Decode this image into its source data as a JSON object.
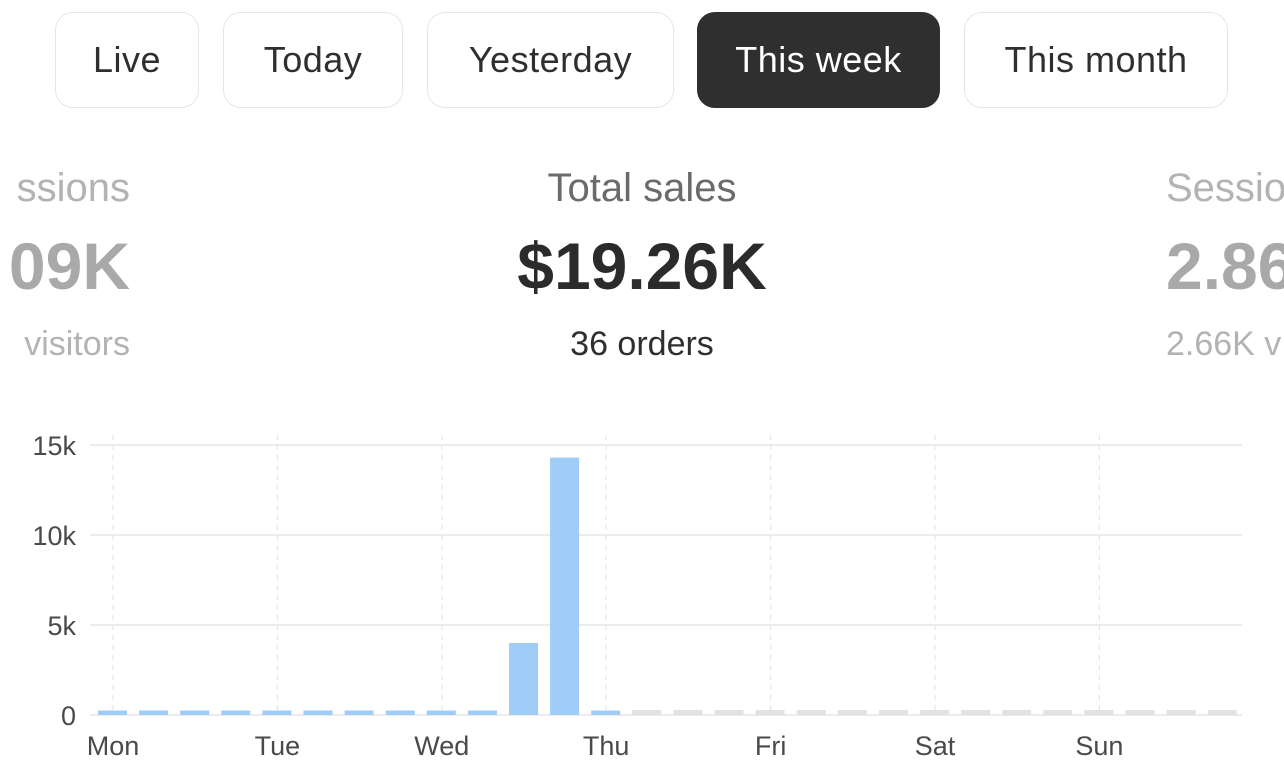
{
  "tabs": [
    {
      "label": "Live",
      "active": false
    },
    {
      "label": "Today",
      "active": false
    },
    {
      "label": "Yesterday",
      "active": false
    },
    {
      "label": "This week",
      "active": true
    },
    {
      "label": "This month",
      "active": false
    }
  ],
  "metrics": {
    "left": {
      "label": "ssions",
      "value": "09K",
      "sub": "visitors"
    },
    "center": {
      "label": "Total sales",
      "value": "$19.26K",
      "sub": "36 orders"
    },
    "right": {
      "label": "Sessio",
      "value": "2.86",
      "sub": "2.66K v"
    }
  },
  "colors": {
    "bar": "#a0cdf8",
    "future_bar": "#e2e2e2",
    "active_tab": "#2f2f2f"
  },
  "chart_data": {
    "type": "bar",
    "y_tick_labels": [
      "0",
      "5k",
      "10k",
      "15k"
    ],
    "y_ticks": [
      0,
      5000,
      10000,
      15000
    ],
    "ylim": [
      0,
      15000
    ],
    "x_tick_labels": [
      "Mon",
      "Tue",
      "Wed",
      "Thu",
      "Fri",
      "Sat",
      "Sun"
    ],
    "values": [
      250,
      250,
      250,
      250,
      250,
      250,
      250,
      250,
      250,
      250,
      4000,
      14300,
      250
    ],
    "future_bar_count": 15
  }
}
